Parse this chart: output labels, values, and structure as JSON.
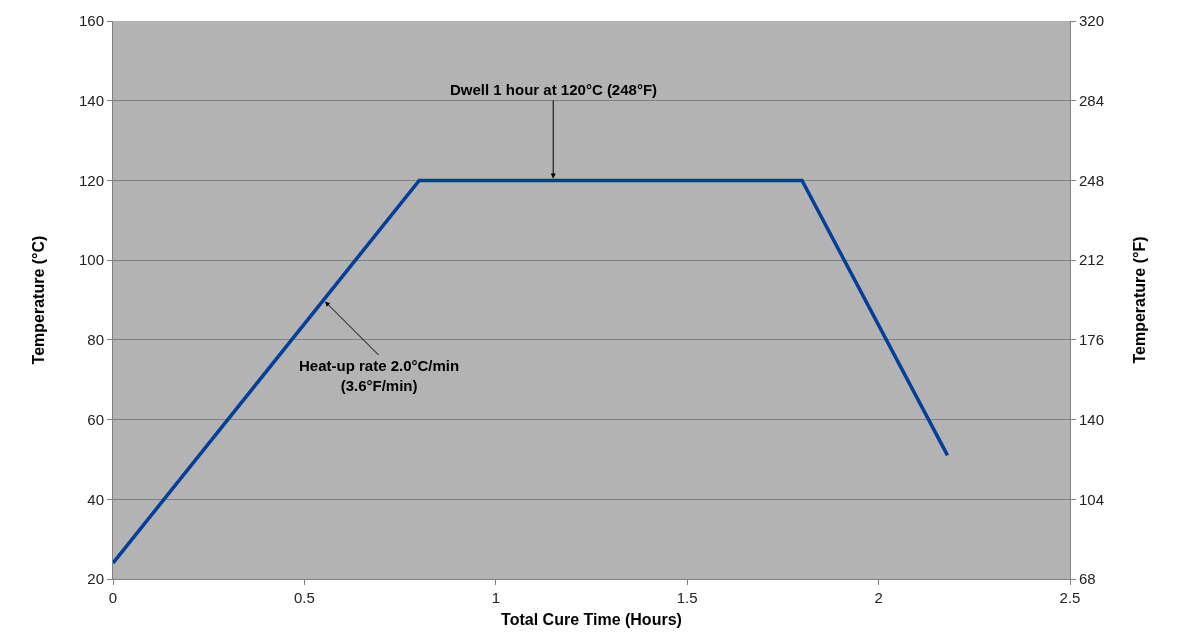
{
  "chart_data": {
    "type": "line",
    "xlabel": "Total Cure Time (Hours)",
    "ylabel": "Temperature (°C)",
    "y2label": "Temperature (°F)",
    "x": [
      0,
      0.8,
      1.8,
      2.18
    ],
    "series": [
      {
        "color": "#003f99",
        "values": [
          24,
          120,
          120,
          51
        ]
      }
    ],
    "xlim": [
      0,
      2.5
    ],
    "xticks": [
      0,
      0.5,
      1,
      1.5,
      2,
      2.5
    ],
    "ylim": [
      20,
      160
    ],
    "yticks": [
      20,
      40,
      60,
      80,
      100,
      120,
      140,
      160
    ],
    "y2lim": [
      68,
      320
    ],
    "y2ticks": [
      68,
      104,
      140,
      176,
      212,
      248,
      284,
      320
    ],
    "grid": "y",
    "marker": "none",
    "line_style": "solid",
    "annotations": [
      {
        "text": "Dwell 1 hour at 120°C (248°F)",
        "x": 1.15,
        "y": 120
      },
      {
        "text": "Heat-up rate 2.0°C/min\n(3.6°F/min)",
        "x": 0.55,
        "y": 90
      }
    ]
  }
}
